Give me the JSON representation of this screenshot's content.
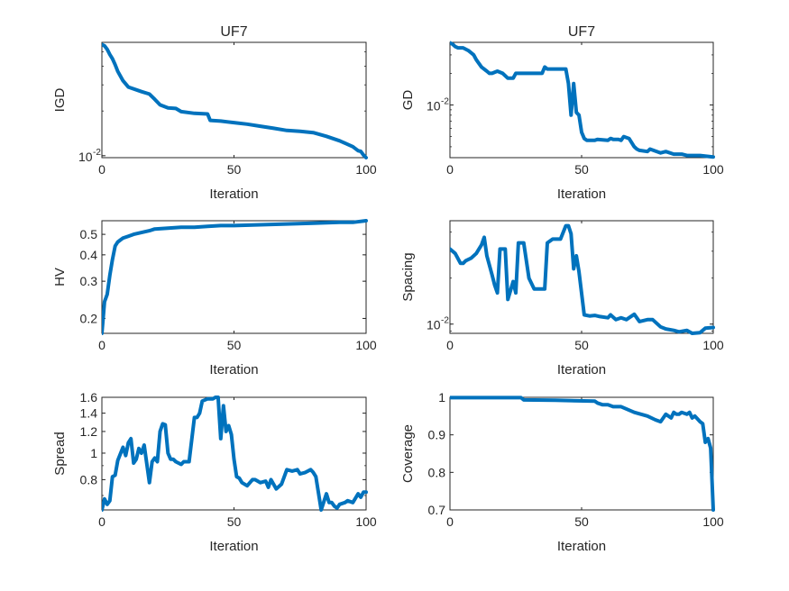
{
  "figure": {
    "background": "#ffffff",
    "line_color": "#0072BD"
  },
  "chart_data": [
    {
      "type": "line",
      "title": "UF7",
      "xlabel": "Iteration",
      "ylabel": "IGD",
      "xlim": [
        0,
        100
      ],
      "ylim": [
        0.0097,
        0.058
      ],
      "yscale": "log",
      "xticks": [
        0,
        50,
        100
      ],
      "yticks": [
        {
          "value": 0.01,
          "base": "10",
          "exp": "-2"
        }
      ],
      "series": [
        {
          "x": [
            0,
            1,
            2,
            3,
            4,
            5,
            6,
            8,
            10,
            15,
            18,
            20,
            22,
            25,
            28,
            30,
            35,
            40,
            41,
            45,
            50,
            55,
            60,
            65,
            70,
            75,
            80,
            85,
            90,
            95,
            97,
            98,
            99,
            100
          ],
          "y": [
            0.056,
            0.055,
            0.052,
            0.048,
            0.045,
            0.041,
            0.037,
            0.032,
            0.029,
            0.027,
            0.026,
            0.024,
            0.022,
            0.021,
            0.0208,
            0.0198,
            0.0193,
            0.0191,
            0.0173,
            0.0171,
            0.0167,
            0.0163,
            0.0158,
            0.0153,
            0.0148,
            0.0146,
            0.0143,
            0.0135,
            0.0126,
            0.0115,
            0.0108,
            0.0107,
            0.0101,
            0.0097
          ]
        }
      ]
    },
    {
      "type": "line",
      "title": "UF7",
      "xlabel": "Iteration",
      "ylabel": "GD",
      "xlim": [
        0,
        100
      ],
      "ylim": [
        0.00315,
        0.0395
      ],
      "yscale": "log",
      "xticks": [
        0,
        50,
        100
      ],
      "yticks": [
        {
          "value": 0.01,
          "base": "10",
          "exp": "-2"
        }
      ],
      "series": [
        {
          "x": [
            0,
            1,
            2,
            3,
            5,
            7,
            9,
            10,
            12,
            14,
            15,
            16,
            18,
            20,
            22,
            24,
            25,
            26,
            35,
            36,
            37,
            40,
            44,
            45,
            46,
            47,
            48,
            49,
            50,
            51,
            52,
            55,
            56,
            60,
            61,
            62,
            64,
            65,
            66,
            68,
            70,
            71,
            72,
            75,
            76,
            80,
            82,
            85,
            88,
            90,
            95,
            100
          ],
          "y": [
            0.039,
            0.038,
            0.036,
            0.035,
            0.035,
            0.033,
            0.03,
            0.027,
            0.023,
            0.021,
            0.02,
            0.02,
            0.021,
            0.02,
            0.018,
            0.018,
            0.02,
            0.02,
            0.02,
            0.023,
            0.022,
            0.022,
            0.022,
            0.016,
            0.008,
            0.016,
            0.0085,
            0.008,
            0.0055,
            0.0048,
            0.0046,
            0.0046,
            0.0047,
            0.0046,
            0.0048,
            0.0047,
            0.0047,
            0.0046,
            0.005,
            0.0048,
            0.004,
            0.0038,
            0.0037,
            0.0036,
            0.0038,
            0.0035,
            0.0036,
            0.0034,
            0.0034,
            0.0033,
            0.0033,
            0.0032
          ]
        }
      ]
    },
    {
      "type": "line",
      "title": "",
      "xlabel": "Iteration",
      "ylabel": "HV",
      "xlim": [
        0,
        100
      ],
      "ylim": [
        0.17,
        0.58
      ],
      "yscale": "log",
      "xticks": [
        0,
        50,
        100
      ],
      "yticks": [
        {
          "value": 0.2,
          "label": "0.2"
        },
        {
          "value": 0.3,
          "label": "0.3"
        },
        {
          "value": 0.4,
          "label": "0.4"
        },
        {
          "value": 0.5,
          "label": "0.5"
        }
      ],
      "series": [
        {
          "x": [
            0,
            1,
            2,
            3,
            4,
            5,
            6,
            7,
            8,
            10,
            12,
            15,
            18,
            20,
            25,
            30,
            35,
            40,
            45,
            50,
            60,
            70,
            80,
            90,
            95,
            100
          ],
          "y": [
            0.17,
            0.24,
            0.26,
            0.32,
            0.38,
            0.44,
            0.46,
            0.47,
            0.48,
            0.49,
            0.5,
            0.51,
            0.52,
            0.53,
            0.535,
            0.54,
            0.54,
            0.545,
            0.55,
            0.55,
            0.555,
            0.56,
            0.565,
            0.57,
            0.57,
            0.58
          ]
        }
      ]
    },
    {
      "type": "line",
      "title": "",
      "xlabel": "Iteration",
      "ylabel": "Spacing",
      "xlim": [
        0,
        100
      ],
      "ylim": [
        0.0087,
        0.0475
      ],
      "yscale": "log",
      "xticks": [
        0,
        50,
        100
      ],
      "yticks": [
        {
          "value": 0.01,
          "base": "10",
          "exp": "-2"
        }
      ],
      "series": [
        {
          "x": [
            0,
            2,
            4,
            5,
            6,
            8,
            10,
            12,
            13,
            14,
            16,
            17,
            18,
            19,
            20,
            21,
            22,
            24,
            25,
            26,
            27,
            28,
            30,
            32,
            35,
            36,
            37,
            39,
            42,
            44,
            45,
            46,
            47,
            48,
            49,
            51,
            53,
            55,
            57,
            60,
            61,
            63,
            65,
            67,
            70,
            72,
            75,
            77,
            80,
            82,
            85,
            87,
            90,
            92,
            95,
            97,
            100
          ],
          "y": [
            0.031,
            0.029,
            0.025,
            0.025,
            0.026,
            0.027,
            0.029,
            0.033,
            0.037,
            0.028,
            0.021,
            0.018,
            0.016,
            0.031,
            0.031,
            0.031,
            0.0145,
            0.019,
            0.016,
            0.034,
            0.034,
            0.034,
            0.02,
            0.017,
            0.017,
            0.017,
            0.034,
            0.036,
            0.036,
            0.044,
            0.044,
            0.039,
            0.023,
            0.028,
            0.022,
            0.0115,
            0.0113,
            0.0114,
            0.0112,
            0.011,
            0.0115,
            0.0107,
            0.011,
            0.0107,
            0.0116,
            0.0104,
            0.0107,
            0.0107,
            0.0096,
            0.0093,
            0.0091,
            0.0089,
            0.0091,
            0.0087,
            0.0088,
            0.0094,
            0.0095
          ]
        }
      ]
    },
    {
      "type": "line",
      "title": "",
      "xlabel": "Iteration",
      "ylabel": "Spread",
      "xlim": [
        0,
        100
      ],
      "ylim": [
        0.62,
        1.6
      ],
      "yscale": "log",
      "xticks": [
        0,
        50,
        100
      ],
      "yticks": [
        {
          "value": 0.8,
          "label": "0.8"
        },
        {
          "value": 1,
          "label": "1"
        },
        {
          "value": 1.2,
          "label": "1.2"
        },
        {
          "value": 1.4,
          "label": "1.4"
        },
        {
          "value": 1.6,
          "label": "1.6"
        }
      ],
      "series": [
        {
          "x": [
            0,
            1,
            2,
            3,
            4,
            5,
            6,
            8,
            9,
            10,
            11,
            12,
            13,
            14,
            15,
            16,
            18,
            19,
            20,
            21,
            22,
            23,
            24,
            25,
            26,
            27,
            28,
            30,
            31,
            33,
            35,
            36,
            37,
            38,
            40,
            41,
            42,
            43,
            44,
            45,
            46,
            47,
            48,
            49,
            50,
            51,
            52,
            53,
            55,
            57,
            58,
            60,
            62,
            63,
            64,
            66,
            68,
            70,
            72,
            74,
            75,
            77,
            79,
            80,
            81,
            83,
            85,
            86,
            87,
            88,
            89,
            90,
            92,
            93,
            95,
            97,
            98,
            99,
            100
          ],
          "y": [
            0.62,
            0.68,
            0.65,
            0.67,
            0.82,
            0.83,
            0.94,
            1.05,
            0.98,
            1.09,
            1.13,
            0.92,
            0.95,
            1.04,
            1.0,
            1.07,
            0.78,
            0.93,
            0.96,
            0.93,
            1.2,
            1.28,
            1.27,
            1.0,
            0.95,
            0.95,
            0.93,
            0.91,
            0.93,
            0.93,
            1.35,
            1.35,
            1.4,
            1.55,
            1.58,
            1.58,
            1.58,
            1.6,
            1.6,
            1.13,
            1.49,
            1.2,
            1.26,
            1.17,
            0.95,
            0.82,
            0.81,
            0.78,
            0.76,
            0.8,
            0.8,
            0.78,
            0.79,
            0.75,
            0.8,
            0.74,
            0.77,
            0.87,
            0.86,
            0.87,
            0.84,
            0.85,
            0.87,
            0.85,
            0.82,
            0.62,
            0.71,
            0.66,
            0.66,
            0.64,
            0.63,
            0.65,
            0.66,
            0.67,
            0.66,
            0.71,
            0.69,
            0.72,
            0.72
          ]
        }
      ]
    },
    {
      "type": "line",
      "title": "",
      "xlabel": "Iteration",
      "ylabel": "Coverage",
      "xlim": [
        0,
        100
      ],
      "ylim": [
        0.7,
        1.0
      ],
      "yscale": "linear",
      "xticks": [
        0,
        50,
        100
      ],
      "yticks": [
        {
          "value": 0.7,
          "label": "0.7"
        },
        {
          "value": 0.8,
          "label": "0.8"
        },
        {
          "value": 0.9,
          "label": "0.9"
        },
        {
          "value": 1,
          "label": "1"
        }
      ],
      "series": [
        {
          "x": [
            0,
            10,
            20,
            27,
            28,
            40,
            55,
            56,
            58,
            60,
            62,
            65,
            70,
            75,
            78,
            80,
            82,
            84,
            85,
            86,
            87,
            88,
            90,
            91,
            92,
            93,
            95,
            96,
            97,
            98,
            99,
            100
          ],
          "y": [
            0.999,
            0.999,
            0.999,
            0.999,
            0.993,
            0.992,
            0.99,
            0.985,
            0.98,
            0.98,
            0.975,
            0.975,
            0.96,
            0.95,
            0.94,
            0.935,
            0.955,
            0.945,
            0.96,
            0.955,
            0.955,
            0.96,
            0.955,
            0.96,
            0.945,
            0.95,
            0.935,
            0.93,
            0.88,
            0.89,
            0.865,
            0.7
          ]
        }
      ]
    }
  ]
}
